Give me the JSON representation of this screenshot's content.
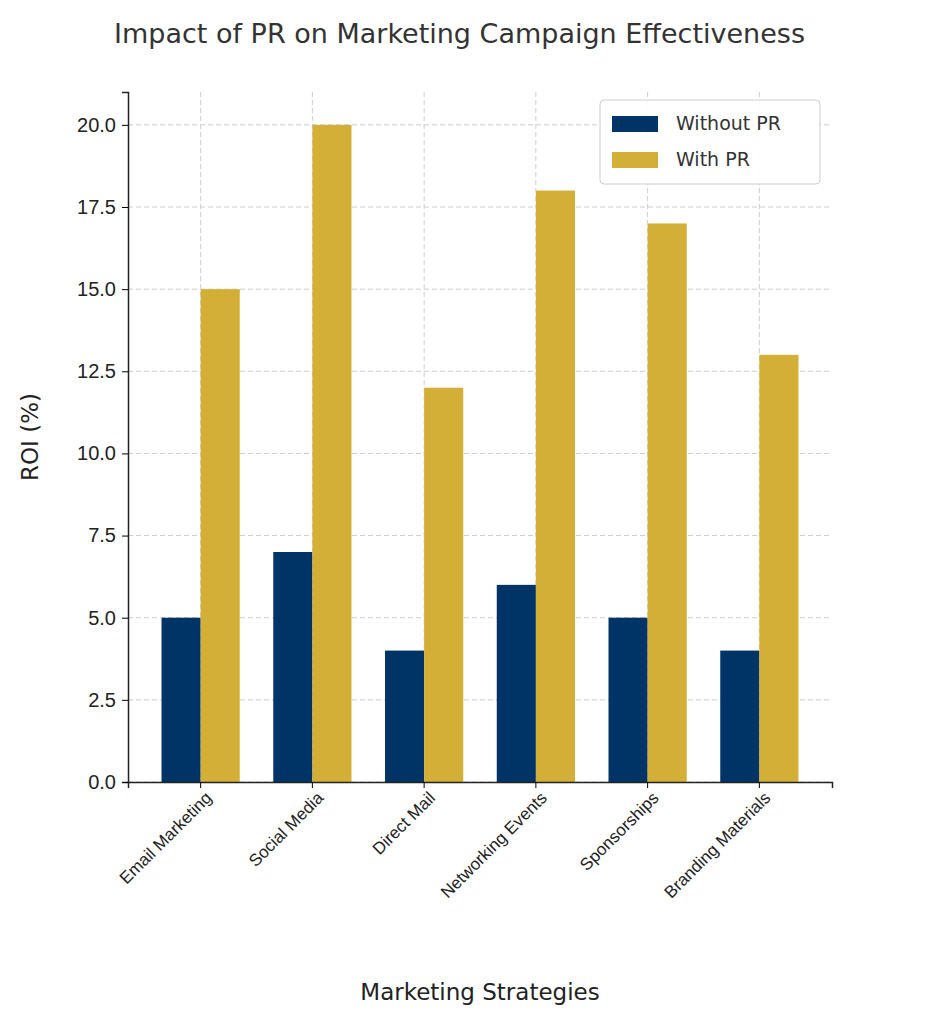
{
  "chart_data": {
    "type": "bar",
    "title": "Impact of PR on Marketing Campaign Effectiveness",
    "x_label": "Marketing Strategies",
    "y_label": "ROI (%)",
    "categories": [
      "Email Marketing",
      "Social Media",
      "Direct Mail",
      "Networking Events",
      "Sponsorships",
      "Branding Materials"
    ],
    "series": [
      {
        "name": "Without PR",
        "color": "#003366",
        "values": [
          5,
          7,
          4,
          6,
          5,
          4
        ]
      },
      {
        "name": "With PR",
        "color": "#d4af37",
        "values": [
          15,
          20,
          12,
          18,
          17,
          13
        ]
      }
    ],
    "ylim": [
      0,
      21
    ],
    "yticks": [
      {
        "value": 0,
        "label": "0.0"
      },
      2.5,
      {
        "value": 5,
        "label": "5.0"
      },
      7.5,
      {
        "value": 10,
        "label": "10.0"
      },
      12.5,
      {
        "value": 15,
        "label": "15.0"
      },
      17.5,
      {
        "value": 20,
        "label": "20.0"
      }
    ],
    "grid": true,
    "legend": "upper right"
  }
}
